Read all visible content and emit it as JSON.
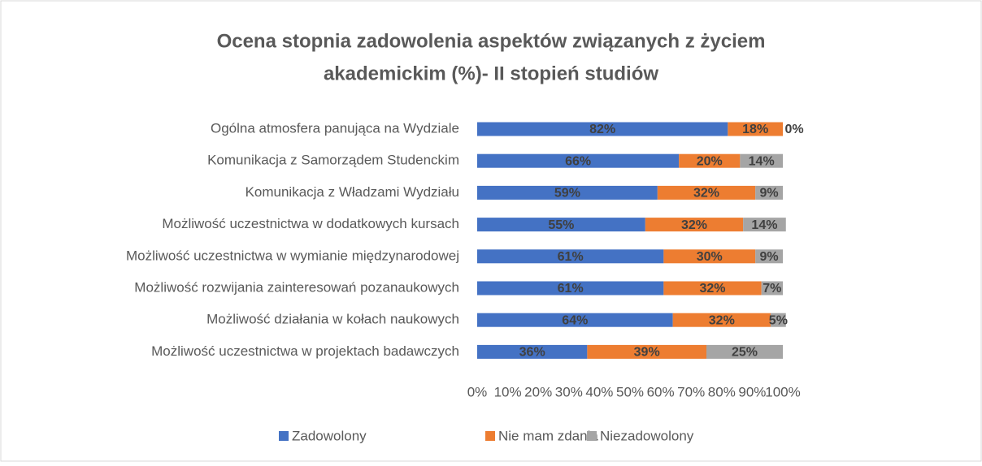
{
  "chart_data": {
    "type": "bar_stacked_horizontal",
    "title": [
      "Ocena stopnia zadowolenia aspektów związanych z życiem",
      "akademickim (%)- II stopień studiów"
    ],
    "categories": [
      "Ogólna atmosfera panująca na Wydziale",
      "Komunikacja z Samorządem Studenckim",
      "Komunikacja z Władzami Wydziału",
      "Możliwość uczestnictwa w dodatkowych kursach",
      "Możliwość uczestnictwa w wymianie międzynarodowej",
      "Możliwość rozwijania zainteresowań pozanaukowych",
      "Możliwość działania w kołach naukowych",
      "Możliwość uczestnictwa w projektach badawczych"
    ],
    "series": [
      {
        "name": "Zadowolony",
        "color": "#4472c4",
        "values": [
          82,
          66,
          59,
          55,
          61,
          61,
          64,
          36
        ],
        "value_labels": [
          "82%",
          "66%",
          "59%",
          "55%",
          "61%",
          "61%",
          "64%",
          "36%"
        ]
      },
      {
        "name": "Nie mam zdania",
        "color": "#ed7d31",
        "values": [
          18,
          20,
          32,
          32,
          30,
          32,
          32,
          39
        ],
        "value_labels": [
          "18%",
          "20%",
          "32%",
          "32%",
          "30%",
          "32%",
          "32%",
          "39%"
        ]
      },
      {
        "name": "Niezadowolony",
        "color": "#a5a5a5",
        "values": [
          0,
          14,
          9,
          14,
          9,
          7,
          5,
          25
        ],
        "value_labels": [
          "0%",
          "14%",
          "9%",
          "14%",
          "9%",
          "7%",
          "5%",
          "25%"
        ]
      }
    ],
    "xlim": [
      0,
      100
    ],
    "xticks": [
      {
        "value": 0,
        "label": "0%"
      },
      {
        "value": 10,
        "label": "10%"
      },
      {
        "value": 20,
        "label": "20%"
      },
      {
        "value": 30,
        "label": "30%"
      },
      {
        "value": 40,
        "label": "40%"
      },
      {
        "value": 50,
        "label": "50%"
      },
      {
        "value": 60,
        "label": "60%"
      },
      {
        "value": 70,
        "label": "70%"
      },
      {
        "value": 80,
        "label": "80%"
      },
      {
        "value": 90,
        "label": "90%"
      },
      {
        "value": 100,
        "label": "100%"
      }
    ],
    "grid": false,
    "legend": "bottom"
  }
}
